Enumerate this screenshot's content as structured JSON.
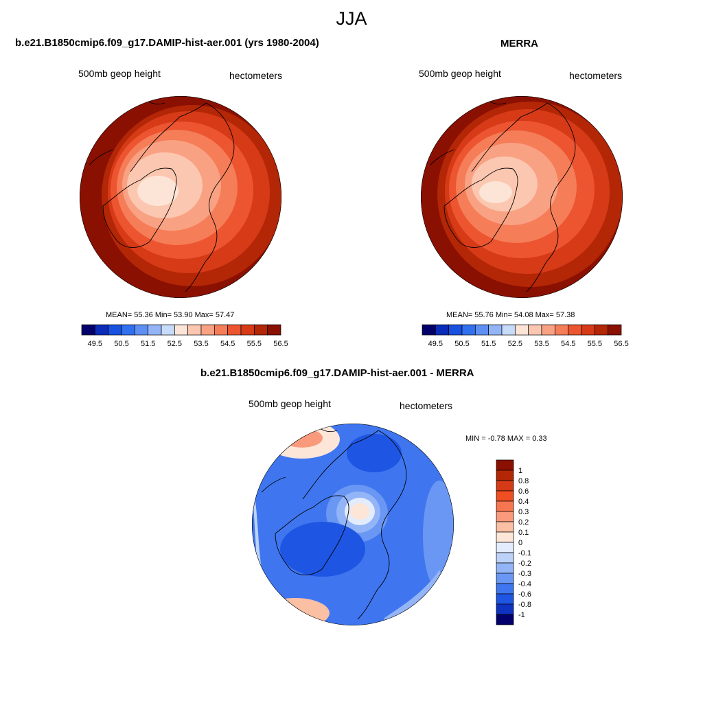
{
  "figure": {
    "title": "JJA"
  },
  "panels": [
    {
      "title": "b.e21.B1850cmip6.f09_g17.DAMIP-hist-aer.001 (yrs 1980-2004)",
      "left_label": "500mb geop height",
      "right_label": "hectometers",
      "stats": "MEAN=  55.36  Min=  53.90  Max=  57.47",
      "colorbar": {
        "labels": [
          "49.5",
          "50.5",
          "51.5",
          "52.5",
          "53.5",
          "54.5",
          "55.5",
          "56.5"
        ],
        "colors": [
          "#03006b",
          "#0a2cb8",
          "#1850e0",
          "#3170ef",
          "#5e8ff3",
          "#93b5f7",
          "#c7dbfb",
          "#fce4d6",
          "#fbc7b0",
          "#f8a283",
          "#f57d58",
          "#ec5530",
          "#d63a17",
          "#b32606",
          "#8a1002"
        ]
      }
    },
    {
      "title": "MERRA",
      "left_label": "500mb geop height",
      "right_label": "hectometers",
      "stats": "MEAN=  55.76  Min=  54.08  Max=  57.38",
      "colorbar": {
        "labels": [
          "49.5",
          "50.5",
          "51.5",
          "52.5",
          "53.5",
          "54.5",
          "55.5",
          "56.5"
        ],
        "colors": [
          "#03006b",
          "#0a2cb8",
          "#1850e0",
          "#3170ef",
          "#5e8ff3",
          "#93b5f7",
          "#c7dbfb",
          "#fce4d6",
          "#fbc7b0",
          "#f8a283",
          "#f57d58",
          "#ec5530",
          "#d63a17",
          "#b32606",
          "#8a1002"
        ]
      }
    },
    {
      "title": "b.e21.B1850cmip6.f09_g17.DAMIP-hist-aer.001 - MERRA",
      "left_label": "500mb geop height",
      "right_label": "hectometers",
      "stats": "MIN =  -0.78 MAX =   0.33",
      "colorbar": {
        "labels": [
          "1",
          "0.8",
          "0.6",
          "0.4",
          "0.3",
          "0.2",
          "0.1",
          "0",
          "-0.1",
          "-0.2",
          "-0.3",
          "-0.4",
          "-0.6",
          "-0.8",
          "-1"
        ],
        "colors": [
          "#8a1002",
          "#b32606",
          "#d63a17",
          "#ef4f22",
          "#f67650",
          "#f99a7c",
          "#fbbfa4",
          "#fde6d8",
          "#e2ecfc",
          "#bcd2f8",
          "#93b5f7",
          "#6a97f3",
          "#3f76ef",
          "#1e56e3",
          "#0f33c1",
          "#03006b"
        ]
      }
    }
  ]
}
